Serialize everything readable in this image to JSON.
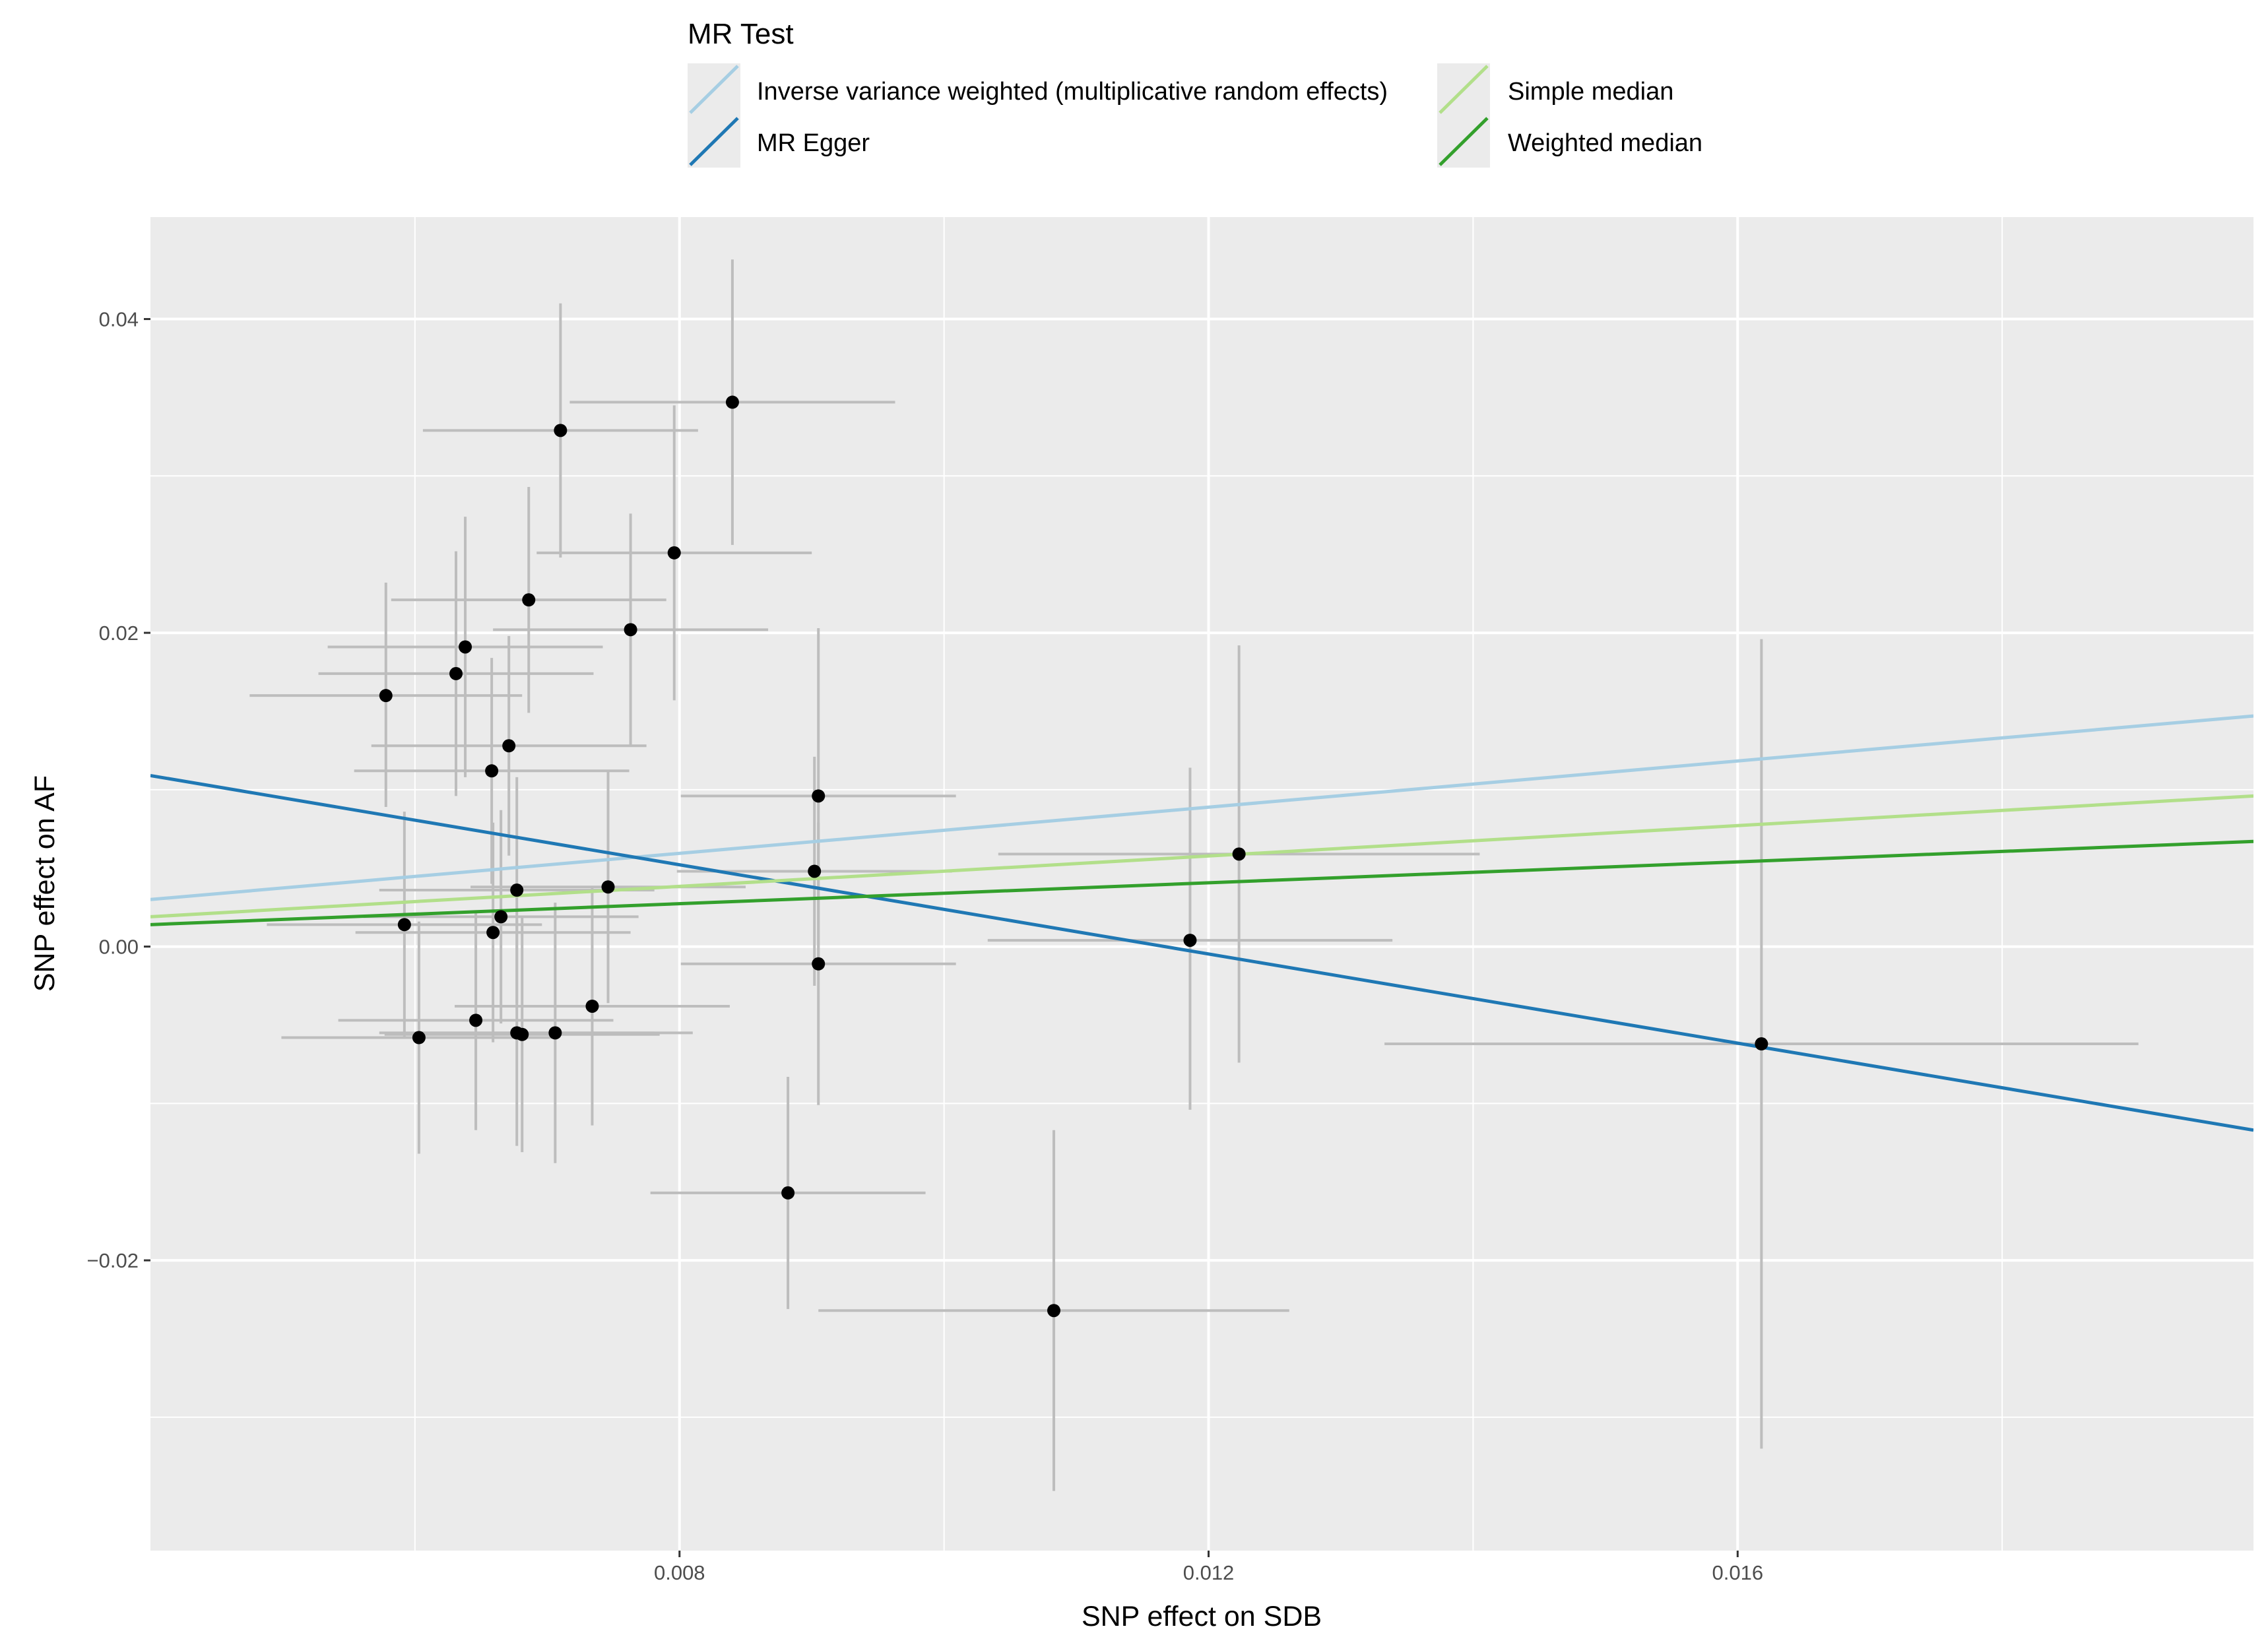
{
  "chart_data": {
    "type": "scatter",
    "title": "",
    "xlabel": "SNP effect on SDB",
    "ylabel": "SNP effect on AF",
    "xlim": [
      0.004,
      0.0199
    ],
    "ylim": [
      -0.0385,
      0.0465
    ],
    "x_ticks": [
      0.008,
      0.012,
      0.016
    ],
    "x_tick_labels": [
      "0.008",
      "0.012",
      "0.016"
    ],
    "y_ticks": [
      -0.02,
      0.0,
      0.02,
      0.04
    ],
    "y_tick_labels": [
      "−0.02",
      "0.00",
      "0.02",
      "0.04"
    ],
    "grid": true,
    "legend": {
      "title": "MR Test",
      "position": "top",
      "entries": [
        {
          "label": "Inverse variance weighted (multiplicative random effects)",
          "color": "#a6cee3"
        },
        {
          "label": "MR Egger",
          "color": "#1f78b4"
        },
        {
          "label": "Simple median",
          "color": "#b2df8a"
        },
        {
          "label": "Weighted median",
          "color": "#33a02c"
        }
      ]
    },
    "lines": [
      {
        "name": "Inverse variance weighted (multiplicative random effects)",
        "color": "#a6cee3",
        "x": [
          0.004,
          0.0199
        ],
        "y": [
          0.003,
          0.0147
        ]
      },
      {
        "name": "MR Egger",
        "color": "#1f78b4",
        "x": [
          0.004,
          0.0199
        ],
        "y": [
          0.0109,
          -0.0117
        ]
      },
      {
        "name": "Simple median",
        "color": "#b2df8a",
        "x": [
          0.004,
          0.0199
        ],
        "y": [
          0.0019,
          0.0096
        ]
      },
      {
        "name": "Weighted median",
        "color": "#33a02c",
        "x": [
          0.004,
          0.0199
        ],
        "y": [
          0.0014,
          0.0067
        ]
      }
    ],
    "points": [
      {
        "x": 0.00578,
        "y": 0.016,
        "x_lo": 0.00475,
        "x_hi": 0.00681,
        "y_lo": 0.0089,
        "y_hi": 0.0232
      },
      {
        "x": 0.00592,
        "y": 0.0014,
        "x_lo": 0.00488,
        "x_hi": 0.00696,
        "y_lo": -0.0058,
        "y_hi": 0.0086
      },
      {
        "x": 0.00603,
        "y": -0.0058,
        "x_lo": 0.00499,
        "x_hi": 0.00707,
        "y_lo": -0.0132,
        "y_hi": 0.0016
      },
      {
        "x": 0.00631,
        "y": 0.0174,
        "x_lo": 0.00527,
        "x_hi": 0.00735,
        "y_lo": 0.0096,
        "y_hi": 0.0252
      },
      {
        "x": 0.00638,
        "y": 0.0191,
        "x_lo": 0.00534,
        "x_hi": 0.00742,
        "y_lo": 0.0108,
        "y_hi": 0.0274
      },
      {
        "x": 0.00646,
        "y": -0.0047,
        "x_lo": 0.00542,
        "x_hi": 0.0075,
        "y_lo": -0.0117,
        "y_hi": 0.0023
      },
      {
        "x": 0.00658,
        "y": 0.0112,
        "x_lo": 0.00554,
        "x_hi": 0.00762,
        "y_lo": 0.004,
        "y_hi": 0.0184
      },
      {
        "x": 0.00659,
        "y": 0.0009,
        "x_lo": 0.00555,
        "x_hi": 0.00763,
        "y_lo": -0.0061,
        "y_hi": 0.0079
      },
      {
        "x": 0.00665,
        "y": 0.0019,
        "x_lo": 0.00561,
        "x_hi": 0.00769,
        "y_lo": -0.0049,
        "y_hi": 0.0087
      },
      {
        "x": 0.00671,
        "y": 0.0128,
        "x_lo": 0.00567,
        "x_hi": 0.00775,
        "y_lo": 0.0058,
        "y_hi": 0.0198
      },
      {
        "x": 0.00677,
        "y": 0.0036,
        "x_lo": 0.00573,
        "x_hi": 0.00781,
        "y_lo": -0.0036,
        "y_hi": 0.0108
      },
      {
        "x": 0.00677,
        "y": -0.0055,
        "x_lo": 0.00573,
        "x_hi": 0.00781,
        "y_lo": -0.0127,
        "y_hi": 0.0017
      },
      {
        "x": 0.00681,
        "y": -0.0056,
        "x_lo": 0.00577,
        "x_hi": 0.00785,
        "y_lo": -0.0131,
        "y_hi": 0.0019
      },
      {
        "x": 0.00686,
        "y": 0.0221,
        "x_lo": 0.00582,
        "x_hi": 0.0079,
        "y_lo": 0.0149,
        "y_hi": 0.0293
      },
      {
        "x": 0.00706,
        "y": -0.0055,
        "x_lo": 0.00602,
        "x_hi": 0.0081,
        "y_lo": -0.0138,
        "y_hi": 0.0028
      },
      {
        "x": 0.0071,
        "y": 0.0329,
        "x_lo": 0.00606,
        "x_hi": 0.00814,
        "y_lo": 0.0248,
        "y_hi": 0.041
      },
      {
        "x": 0.00734,
        "y": -0.0038,
        "x_lo": 0.0063,
        "x_hi": 0.00838,
        "y_lo": -0.0114,
        "y_hi": 0.0038
      },
      {
        "x": 0.00746,
        "y": 0.0038,
        "x_lo": 0.00642,
        "x_hi": 0.0085,
        "y_lo": -0.0036,
        "y_hi": 0.0112
      },
      {
        "x": 0.00763,
        "y": 0.0202,
        "x_lo": 0.00659,
        "x_hi": 0.00867,
        "y_lo": 0.0128,
        "y_hi": 0.0276
      },
      {
        "x": 0.00796,
        "y": 0.0251,
        "x_lo": 0.00692,
        "x_hi": 0.009,
        "y_lo": 0.0157,
        "y_hi": 0.0345
      },
      {
        "x": 0.0084,
        "y": 0.0347,
        "x_lo": 0.00717,
        "x_hi": 0.00963,
        "y_lo": 0.0256,
        "y_hi": 0.0438
      },
      {
        "x": 0.00882,
        "y": -0.0157,
        "x_lo": 0.00778,
        "x_hi": 0.00986,
        "y_lo": -0.0231,
        "y_hi": -0.0083
      },
      {
        "x": 0.00902,
        "y": 0.0048,
        "x_lo": 0.00798,
        "x_hi": 0.01006,
        "y_lo": -0.0025,
        "y_hi": 0.0121
      },
      {
        "x": 0.00905,
        "y": 0.0096,
        "x_lo": 0.00801,
        "x_hi": 0.01009,
        "y_lo": -0.001,
        "y_hi": 0.0203
      },
      {
        "x": 0.00905,
        "y": -0.0011,
        "x_lo": 0.00801,
        "x_hi": 0.01009,
        "y_lo": -0.0101,
        "y_hi": 0.0079
      },
      {
        "x": 0.01083,
        "y": -0.0232,
        "x_lo": 0.00905,
        "x_hi": 0.01261,
        "y_lo": -0.0347,
        "y_hi": -0.0117
      },
      {
        "x": 0.01186,
        "y": 0.0004,
        "x_lo": 0.01033,
        "x_hi": 0.01339,
        "y_lo": -0.0104,
        "y_hi": 0.0114
      },
      {
        "x": 0.01223,
        "y": 0.0059,
        "x_lo": 0.01041,
        "x_hi": 0.01405,
        "y_lo": -0.0074,
        "y_hi": 0.0192
      },
      {
        "x": 0.01618,
        "y": -0.0062,
        "x_lo": 0.01333,
        "x_hi": 0.01903,
        "y_lo": -0.032,
        "y_hi": 0.0196
      }
    ]
  }
}
